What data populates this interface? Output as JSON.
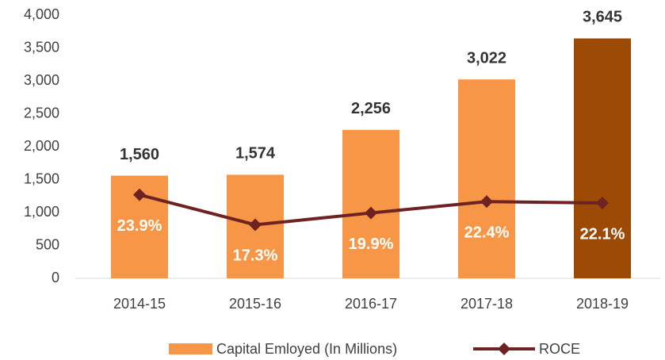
{
  "chart_data": {
    "type": "bar_line",
    "categories": [
      "2014-15",
      "2015-16",
      "2016-17",
      "2017-18",
      "2018-19"
    ],
    "series": [
      {
        "name": "Capital Emloyed (In Millions)",
        "type": "bar",
        "color": "#f79646",
        "colors": [
          "#f79646",
          "#f79646",
          "#f79646",
          "#f79646",
          "#9c4a06"
        ],
        "values": [
          1560,
          1574,
          2256,
          3022,
          3645
        ],
        "value_labels": [
          "1,560",
          "1,574",
          "2,256",
          "3,022",
          "3,645"
        ]
      },
      {
        "name": "ROCE",
        "type": "line",
        "axis": "y2",
        "color": "#6e2222",
        "values": [
          23.9,
          17.3,
          19.9,
          22.4,
          22.1
        ],
        "value_labels": [
          "23.9%",
          "17.3%",
          "19.9%",
          "22.4%",
          "22.1%"
        ]
      }
    ],
    "ylim": [
      0,
      4000
    ],
    "yticks": [
      0,
      500,
      {
        "value": 1000,
        "label": "1,000"
      },
      {
        "value": 1500,
        "label": "1,500"
      },
      {
        "value": 2000,
        "label": "2,000"
      },
      {
        "value": 2500,
        "label": "2,500"
      },
      {
        "value": 3000,
        "label": "3,000"
      },
      {
        "value": 3500,
        "label": "3,500"
      },
      {
        "value": 4000,
        "label": "4,000"
      }
    ],
    "y2lim": [
      5.5,
      63.5
    ],
    "legend": "bottom"
  }
}
